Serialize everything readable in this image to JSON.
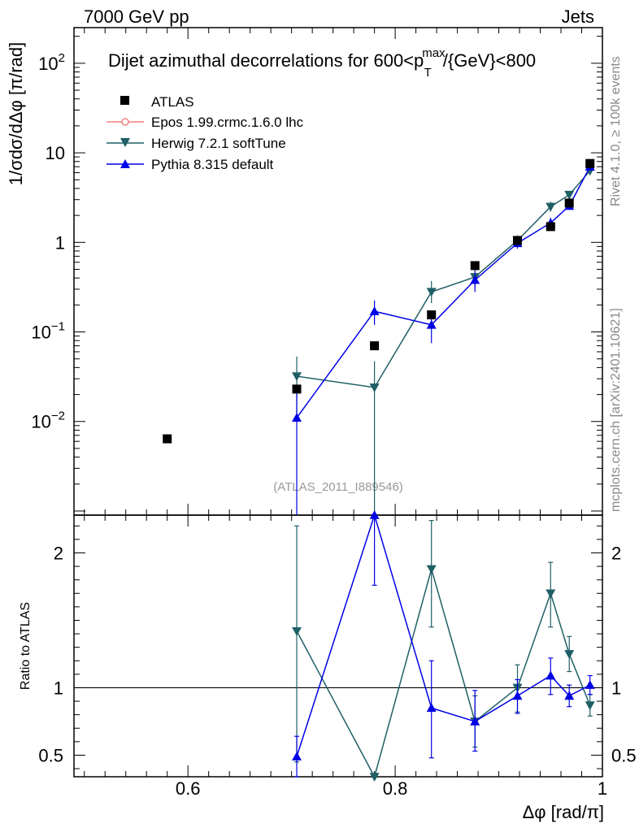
{
  "chart_data": {
    "type": "scatter",
    "header_left": "7000 GeV pp",
    "header_right": "Jets",
    "title": "Dijet azimuthal decorrelations for 600<p_T^max/{GeV}<800",
    "title_main": "Dijet azimuthal decorrelations for 600<p",
    "title_sup": "max",
    "title_sub": "T",
    "title_rest": "/{GeV}<800",
    "ylabel": "1/σdσ/dΔφ [π/rad]",
    "xlabel": "Δφ [rad/π]",
    "ratio_ylabel": "Ratio to ATLAS",
    "analysis_id": "(ATLAS_2011_I889546)",
    "side_text_1": "Rivet 4.1.0, ≥ 100k events",
    "side_text_2": "mcplots.cern.ch [arXiv:2401.10621]",
    "xlim": [
      0.49,
      1.0
    ],
    "ylim_main": [
      0.0009,
      250
    ],
    "ylim_ratio": [
      0.34,
      2.28
    ],
    "x_ticks": [
      0.6,
      0.8,
      1.0
    ],
    "x_tick_labels": [
      "0.6",
      "0.8",
      "1"
    ],
    "y_ticks_main": [
      0.01,
      0.1,
      1,
      10,
      100
    ],
    "ratio_ticks": [
      0.5,
      1,
      2
    ],
    "ratio_tick_labels": [
      "0.5",
      "1",
      "2"
    ],
    "legend": [
      {
        "name": "ATLAS",
        "color": "#000000",
        "marker": "square"
      },
      {
        "name": "Epos 1.99.crmc.1.6.0 lhc",
        "color": "#f08080",
        "marker": "open-circle"
      },
      {
        "name": "Herwig 7.2.1 softTune",
        "color": "#1f5f66",
        "marker": "triangle-down"
      },
      {
        "name": "Pythia 8.315 default",
        "color": "#0000e6",
        "marker": "triangle-up"
      }
    ],
    "series": [
      {
        "name": "ATLAS",
        "x": [
          0.58,
          0.705,
          0.78,
          0.835,
          0.877,
          0.918,
          0.95,
          0.968,
          0.988
        ],
        "y": [
          0.0064,
          0.023,
          0.07,
          0.155,
          0.55,
          1.05,
          1.5,
          2.75,
          7.6
        ]
      },
      {
        "name": "Herwig 7.2.1 softTune",
        "x": [
          0.705,
          0.78,
          0.835,
          0.877,
          0.918,
          0.95,
          0.968,
          0.988
        ],
        "y": [
          0.032,
          0.024,
          0.28,
          0.41,
          1.05,
          2.5,
          3.4,
          6.3
        ],
        "y_low": [
          0.011,
          0.0009,
          0.21,
          0.31,
          0.9,
          2.2,
          3.1,
          5.8
        ],
        "y_high": [
          0.053,
          0.047,
          0.37,
          0.51,
          1.2,
          2.85,
          3.75,
          6.8
        ],
        "ratio": [
          1.42,
          0.34,
          1.88,
          0.75,
          1.0,
          1.7,
          1.25,
          0.87
        ],
        "ratio_low": [
          0.45,
          0.34,
          1.45,
          0.56,
          0.82,
          1.45,
          1.12,
          0.79
        ],
        "ratio_high": [
          2.2,
          0.34,
          2.24,
          0.94,
          1.17,
          1.93,
          1.38,
          0.95
        ]
      },
      {
        "name": "Pythia 8.315 default",
        "x": [
          0.705,
          0.78,
          0.835,
          0.877,
          0.918,
          0.95,
          0.968,
          0.988
        ],
        "y": [
          0.011,
          0.17,
          0.12,
          0.38,
          0.98,
          1.65,
          2.55,
          7.0
        ],
        "y_low": [
          0.0009,
          0.12,
          0.075,
          0.28,
          0.85,
          1.42,
          2.3,
          6.5
        ],
        "y_high": [
          0.022,
          0.225,
          0.17,
          0.48,
          1.12,
          1.88,
          2.85,
          7.6
        ],
        "ratio": [
          0.49,
          2.28,
          0.85,
          0.75,
          0.94,
          1.09,
          0.94,
          1.02
        ],
        "ratio_low": [
          0.34,
          1.76,
          0.48,
          0.53,
          0.81,
          0.95,
          0.86,
          0.95
        ],
        "ratio_high": [
          0.64,
          2.28,
          1.2,
          0.98,
          1.06,
          1.22,
          1.02,
          1.09
        ]
      }
    ]
  }
}
